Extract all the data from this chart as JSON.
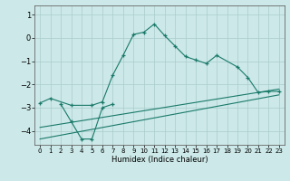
{
  "xlabel": "Humidex (Indice chaleur)",
  "bg_color": "#cce8e8",
  "grid_color": "#aacccc",
  "line_color": "#1a7a6a",
  "xlim": [
    -0.5,
    23.5
  ],
  "ylim": [
    -4.6,
    1.4
  ],
  "yticks": [
    1,
    0,
    -1,
    -2,
    -3,
    -4
  ],
  "xticks": [
    0,
    1,
    2,
    3,
    4,
    5,
    6,
    7,
    8,
    9,
    10,
    11,
    12,
    13,
    14,
    15,
    16,
    17,
    18,
    19,
    20,
    21,
    22,
    23
  ],
  "line1_x": [
    0,
    1,
    3,
    5,
    6,
    7,
    8,
    9,
    10,
    11,
    12,
    13,
    14,
    15,
    16,
    17,
    19,
    20,
    21,
    22,
    23
  ],
  "line1_y": [
    -2.8,
    -2.6,
    -2.9,
    -2.9,
    -2.75,
    -1.6,
    -0.75,
    0.15,
    0.25,
    0.6,
    0.1,
    -0.35,
    -0.8,
    -0.95,
    -1.1,
    -0.75,
    -1.25,
    -1.7,
    -2.35,
    -2.3,
    -2.3
  ],
  "line2_x": [
    2,
    3,
    4,
    5,
    6,
    7
  ],
  "line2_y": [
    -2.85,
    -3.6,
    -4.35,
    -4.35,
    -3.0,
    -2.85
  ],
  "line3_x": [
    0,
    23
  ],
  "line3_y": [
    -3.85,
    -2.2
  ],
  "line4_x": [
    0,
    23
  ],
  "line4_y": [
    -4.35,
    -2.45
  ]
}
